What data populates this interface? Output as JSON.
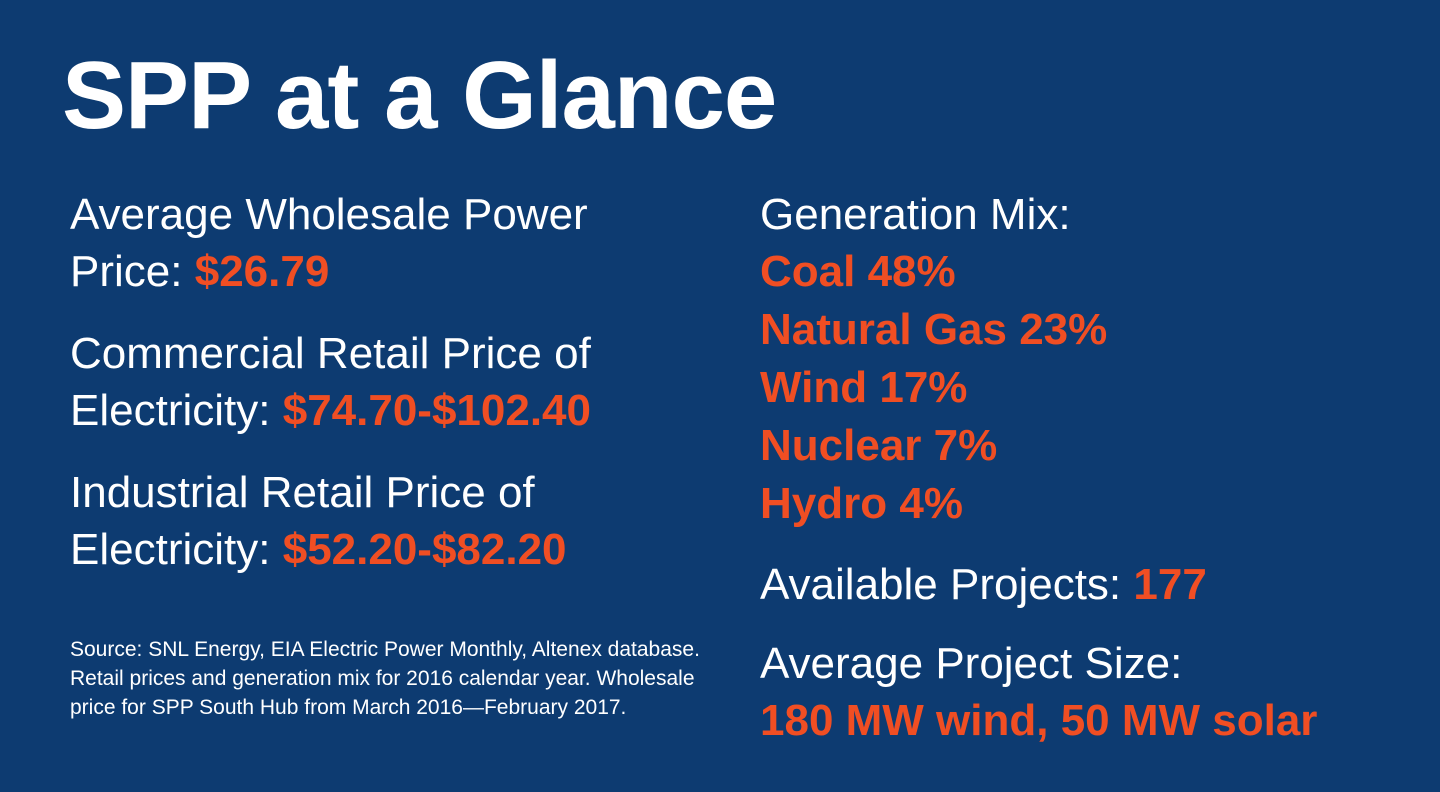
{
  "title": "SPP at a Glance",
  "left": {
    "wholesale": {
      "label_line1": "Average Wholesale Power",
      "label_line2": "Price:",
      "value": "$26.79"
    },
    "commercial": {
      "label_line1": "Commercial Retail Price of",
      "label_line2": "Electricity:",
      "value": "$74.70-$102.40"
    },
    "industrial": {
      "label_line1": "Industrial Retail Price of",
      "label_line2": "Electricity:",
      "value": "$52.20-$82.20"
    },
    "source": "Source: SNL Energy, EIA Electric Power Monthly, Altenex database. Retail prices and generation mix for 2016 calendar year. Wholesale price for SPP South Hub from March 2016—February 2017."
  },
  "right": {
    "generation_mix_label": "Generation Mix:",
    "generation_mix": [
      "Coal 48%",
      "Natural Gas 23%",
      "Wind 17%",
      "Nuclear 7%",
      "Hydro 4%"
    ],
    "available_projects_label": "Available Projects:",
    "available_projects_value": "177",
    "avg_project_size_label": "Average Project Size:",
    "avg_project_size_value": "180 MW wind, 50 MW solar"
  },
  "colors": {
    "background": "#0d3b71",
    "accent": "#f04e23",
    "text": "#ffffff"
  }
}
